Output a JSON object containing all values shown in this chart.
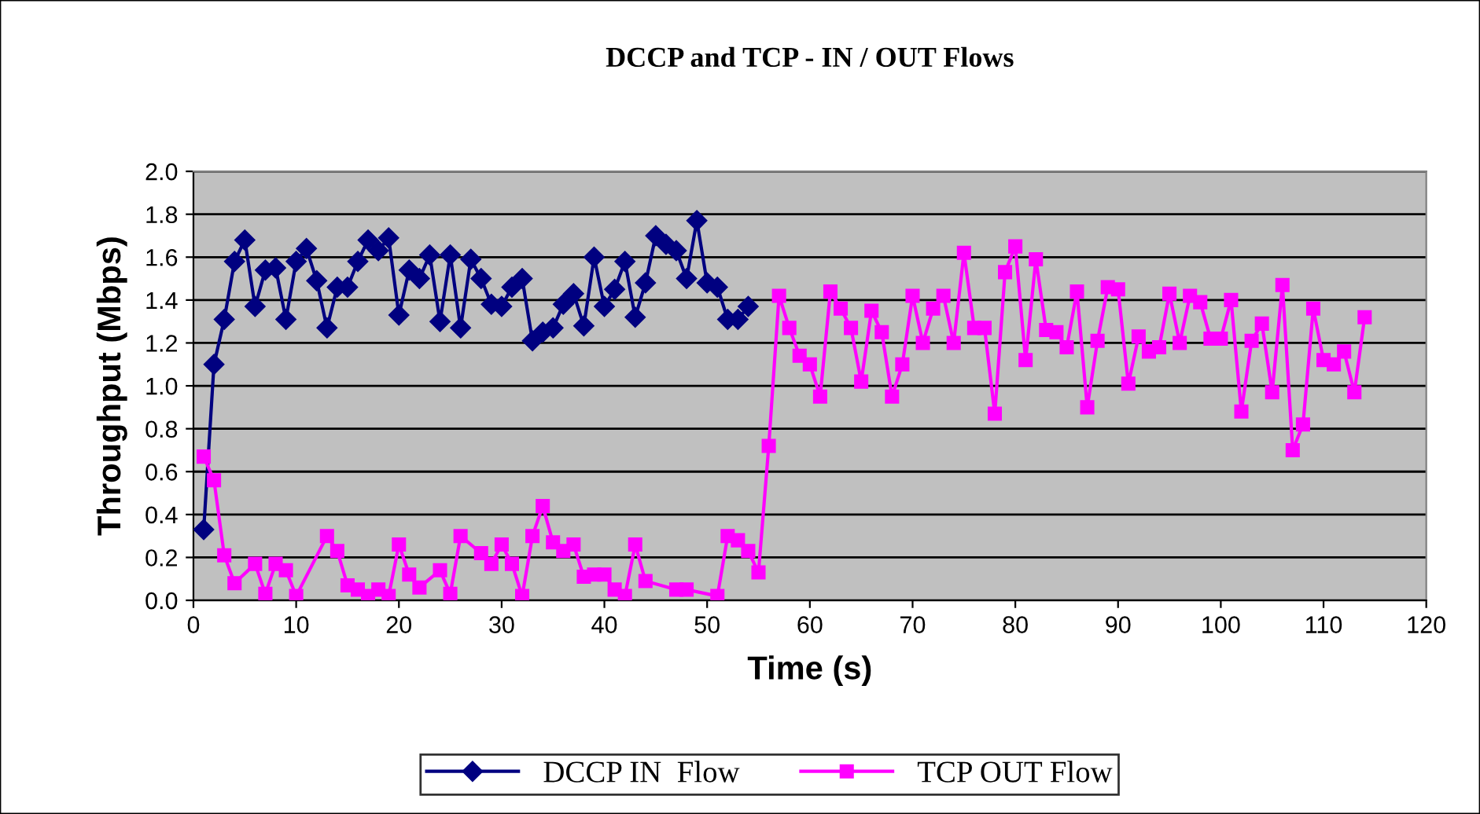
{
  "chart_data": {
    "type": "line",
    "title": "DCCP and TCP - IN / OUT Flows",
    "xlabel": "Time (s)",
    "ylabel": "Throughput (Mbps)",
    "xlim": [
      0,
      120
    ],
    "xticks": [
      0,
      10,
      20,
      30,
      40,
      50,
      60,
      70,
      80,
      90,
      100,
      110,
      120
    ],
    "ylim": [
      0,
      2
    ],
    "yticks": [
      {
        "value": 0,
        "label": "0.0"
      },
      {
        "value": 0.2,
        "label": "0.2"
      },
      {
        "value": 0.4,
        "label": "0.4"
      },
      {
        "value": 0.6,
        "label": "0.6"
      },
      {
        "value": 0.8,
        "label": "0.8"
      },
      {
        "value": 1.0,
        "label": "1.0"
      },
      {
        "value": 1.2,
        "label": "1.2"
      },
      {
        "value": 1.4,
        "label": "1.4"
      },
      {
        "value": 1.6,
        "label": "1.6"
      },
      {
        "value": 1.8,
        "label": "1.8"
      },
      {
        "value": 2.0,
        "label": "2.0"
      }
    ],
    "grid": "y",
    "legend": "bottom",
    "line_style": "solid",
    "series": [
      {
        "name": "DCCP IN  Flow",
        "color": "#000080",
        "marker": "diamond",
        "x": [
          1,
          2,
          3,
          4,
          5,
          6,
          7,
          8,
          9,
          10,
          11,
          12,
          13,
          14,
          15,
          16,
          17,
          18,
          19,
          20,
          21,
          22,
          23,
          24,
          25,
          26,
          27,
          28,
          29,
          30,
          31,
          32,
          33,
          34,
          35,
          36,
          37,
          38,
          39,
          40,
          41,
          42,
          43,
          44,
          45,
          46,
          47,
          48,
          49,
          50,
          51,
          52,
          53,
          54
        ],
        "values": [
          0.33,
          1.1,
          1.31,
          1.58,
          1.68,
          1.37,
          1.54,
          1.55,
          1.31,
          1.58,
          1.64,
          1.49,
          1.27,
          1.46,
          1.46,
          1.58,
          1.68,
          1.63,
          1.69,
          1.33,
          1.54,
          1.5,
          1.61,
          1.3,
          1.61,
          1.27,
          1.59,
          1.5,
          1.38,
          1.37,
          1.46,
          1.5,
          1.21,
          1.25,
          1.27,
          1.38,
          1.43,
          1.28,
          1.6,
          1.37,
          1.45,
          1.58,
          1.32,
          1.48,
          1.7,
          1.66,
          1.63,
          1.5,
          1.77,
          1.48,
          1.46,
          1.31,
          1.31,
          1.37
        ]
      },
      {
        "name": "TCP OUT Flow",
        "color": "#ff00ff",
        "marker": "square",
        "x": [
          1,
          2,
          3,
          4,
          6,
          7,
          8,
          9,
          10,
          13,
          14,
          15,
          16,
          17,
          18,
          19,
          20,
          21,
          22,
          24,
          25,
          26,
          28,
          29,
          30,
          31,
          32,
          33,
          34,
          35,
          36,
          37,
          38,
          39,
          40,
          41,
          42,
          43,
          44,
          47,
          48,
          51,
          52,
          53,
          54,
          55,
          56,
          57,
          58,
          59,
          60,
          61,
          62,
          63,
          64,
          65,
          66,
          67,
          68,
          69,
          70,
          71,
          72,
          73,
          74,
          75,
          76,
          77,
          78,
          79,
          80,
          81,
          82,
          83,
          84,
          85,
          86,
          87,
          88,
          89,
          90,
          91,
          92,
          93,
          94,
          95,
          96,
          97,
          98,
          99,
          100,
          101,
          102,
          103,
          104,
          105,
          106,
          107,
          108,
          109,
          110,
          111,
          112,
          113,
          114
        ],
        "values": [
          0.67,
          0.56,
          0.21,
          0.08,
          0.17,
          0.03,
          0.17,
          0.14,
          0.02,
          0.3,
          0.23,
          0.07,
          0.05,
          0.02,
          0.05,
          0.02,
          0.26,
          0.12,
          0.06,
          0.14,
          0.03,
          0.3,
          0.22,
          0.17,
          0.26,
          0.17,
          0.02,
          0.3,
          0.44,
          0.27,
          0.23,
          0.26,
          0.11,
          0.12,
          0.12,
          0.05,
          0.02,
          0.26,
          0.09,
          0.05,
          0.05,
          0.02,
          0.3,
          0.28,
          0.23,
          0.13,
          0.72,
          1.42,
          1.27,
          1.14,
          1.1,
          0.95,
          1.44,
          1.36,
          1.27,
          1.02,
          1.35,
          1.25,
          0.95,
          1.1,
          1.42,
          1.2,
          1.36,
          1.42,
          1.2,
          1.62,
          1.27,
          1.27,
          0.87,
          1.53,
          1.65,
          1.12,
          1.59,
          1.26,
          1.25,
          1.18,
          1.44,
          0.9,
          1.21,
          1.46,
          1.45,
          1.01,
          1.23,
          1.16,
          1.18,
          1.43,
          1.2,
          1.42,
          1.39,
          1.22,
          1.22,
          1.4,
          0.88,
          1.21,
          1.29,
          0.97,
          1.47,
          0.7,
          0.82,
          1.36,
          1.12,
          1.1,
          1.16,
          0.97,
          1.32
        ]
      }
    ]
  }
}
